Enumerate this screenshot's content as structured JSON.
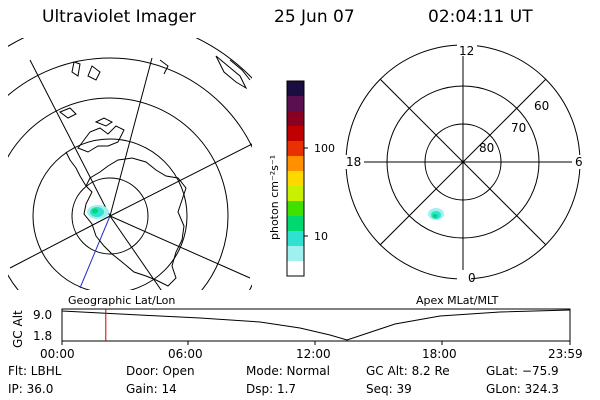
{
  "header": {
    "title": "Ultraviolet Imager",
    "date": "25 Jun 07",
    "time": "02:04:11 UT"
  },
  "geo_panel": {
    "label": "Geographic Lat/Lon"
  },
  "polar_panel": {
    "label": "Apex MLat/MLT",
    "mlt_labels": {
      "top": "12",
      "left": "18",
      "right": "6",
      "bottom": "0"
    },
    "lat_labels": [
      "60",
      "70",
      "80"
    ]
  },
  "colorbar": {
    "unit_label": "photon cm⁻²s⁻¹",
    "ticks": [
      "100",
      "10"
    ],
    "colors": [
      "#1a0d40",
      "#5a1050",
      "#8a0020",
      "#c00000",
      "#e83000",
      "#ff9000",
      "#ffd800",
      "#c8f000",
      "#40e000",
      "#00d870",
      "#30e0d0",
      "#a0f0f0",
      "#ffffff"
    ]
  },
  "altitude_strip": {
    "axis_label": "GC Alt",
    "y_ticks": [
      "9.0",
      "1.8"
    ],
    "x_ticks": [
      "00:00",
      "06:00",
      "12:00",
      "18:00",
      "23:59"
    ],
    "current_marker_color": "#d00000"
  },
  "info": {
    "filter": "Flt: LBHL",
    "ip": "IP: 36.0",
    "door": "Door: Open",
    "gain": "Gain: 14",
    "mode": "Mode: Normal",
    "dsp": "Dsp:    1.7",
    "gc_alt": "GC Alt: 8.2 Re",
    "seq": "Seq: 39",
    "glat": "GLat: −75.9",
    "glon": "GLon: 324.3"
  }
}
